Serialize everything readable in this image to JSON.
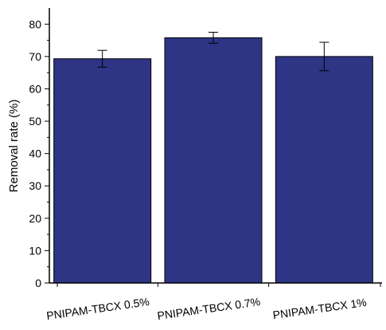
{
  "chart_data": {
    "type": "bar",
    "title": "",
    "xlabel": "",
    "ylabel": "Removal rate (%)",
    "categories": [
      "PNIPAM-TBCX 0.5%",
      "PNIPAM-TBCX 0.7%",
      "PNIPAM-TBCX 1%"
    ],
    "values": [
      69.3,
      75.8,
      70.0
    ],
    "errors": [
      2.6,
      1.7,
      4.4
    ],
    "ylim": [
      0,
      85
    ],
    "yticks": [
      0,
      10,
      20,
      30,
      40,
      50,
      60,
      70,
      80
    ],
    "grid": false,
    "bar_color": "#2e3585"
  }
}
